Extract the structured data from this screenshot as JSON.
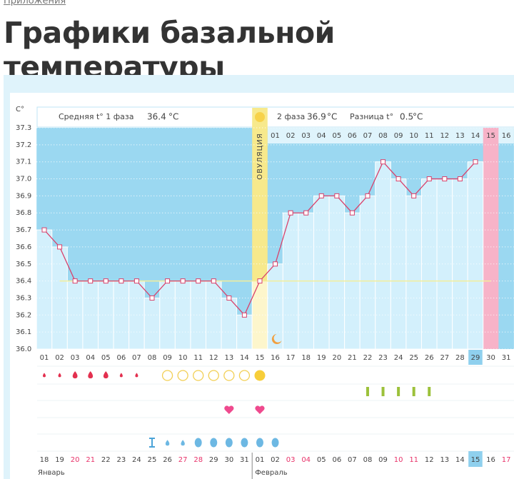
{
  "header": {
    "breadcrumb": "Приложения",
    "title": "Графики базальной температуры"
  },
  "chart_data": {
    "type": "line",
    "y_unit": "С°",
    "phase1_label": "Средняя t° 1 фаза",
    "phase1_mean": 36.4,
    "phase2_label": "2 фаза",
    "phase2_mean": 36.9,
    "difference_label": "Разница t°",
    "difference": 0.5,
    "temp_unit": "°С",
    "ovulation_label": "ОВУЛЯЦИЯ",
    "categories": [
      "01",
      "02",
      "03",
      "04",
      "05",
      "06",
      "07",
      "08",
      "09",
      "10",
      "11",
      "12",
      "13",
      "14",
      "15",
      "16",
      "17",
      "18",
      "19",
      "20",
      "21",
      "22",
      "23",
      "24",
      "25",
      "26",
      "27",
      "28",
      "29",
      "30",
      "31"
    ],
    "phase2_days": [
      "01",
      "02",
      "03",
      "04",
      "05",
      "06",
      "07",
      "08",
      "09",
      "10",
      "11",
      "12",
      "13",
      "14",
      "15",
      "16"
    ],
    "dates": [
      "18",
      "19",
      "20",
      "21",
      "22",
      "23",
      "24",
      "25",
      "26",
      "27",
      "28",
      "29",
      "30",
      "31",
      "01",
      "02",
      "03",
      "04",
      "05",
      "06",
      "07",
      "08",
      "09",
      "10",
      "11",
      "12",
      "13",
      "14",
      "15",
      "16",
      "17"
    ],
    "months": [
      "Январь",
      "Февраль"
    ],
    "series": [
      {
        "color": "#d9416b",
        "values": [
          36.7,
          36.6,
          36.4,
          36.4,
          36.4,
          36.4,
          36.4,
          36.3,
          36.4,
          36.4,
          36.4,
          36.4,
          36.3,
          36.2,
          36.4,
          36.5,
          36.8,
          36.8,
          36.9,
          36.9,
          36.8,
          36.9,
          37.1,
          37.0,
          36.9,
          37.0,
          37.0,
          37.0,
          37.1,
          null,
          null
        ]
      }
    ],
    "ylim": [
      36.0,
      37.3
    ],
    "yticks": [
      {
        "value": 36.0,
        "label": "36.0"
      },
      36.1,
      36.2,
      36.3,
      36.4,
      36.5,
      36.6,
      36.7,
      36.8,
      36.9,
      {
        "value": 37.0,
        "label": "37.0"
      },
      37.1,
      37.2,
      37.3
    ],
    "grid": true
  }
}
